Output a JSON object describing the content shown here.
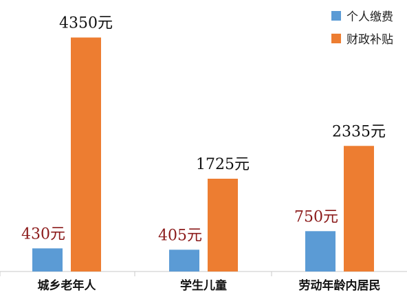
{
  "chart_data": {
    "type": "bar",
    "categories": [
      "城乡老年人",
      "学生儿童",
      "劳动年龄内居民"
    ],
    "series": [
      {
        "name": "个人缴费",
        "values": [
          430,
          405,
          750
        ],
        "value_labels": [
          "430元",
          "405元",
          "750元"
        ]
      },
      {
        "name": "财政补贴",
        "values": [
          4350,
          1725,
          2335
        ],
        "value_labels": [
          "4350元",
          "1725元",
          "2335元"
        ]
      }
    ],
    "ylim": [
      0,
      4600
    ],
    "grid": false,
    "legend_position": "top-right"
  },
  "colors": {
    "series": [
      "#5b9bd5",
      "#ed7d31"
    ],
    "personal_label": "#8b1a1a",
    "subsidy_label": "#111111",
    "axis": "#c8c8c8",
    "category_text": "#111111"
  }
}
